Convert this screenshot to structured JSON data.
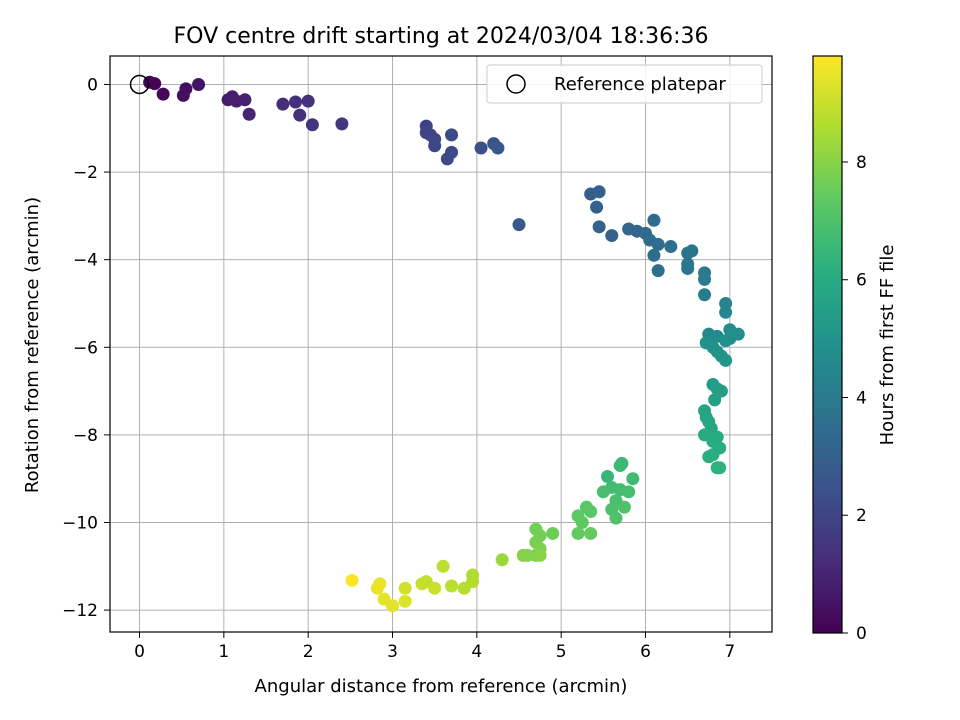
{
  "chart_data": {
    "type": "scatter",
    "title": "FOV centre drift starting at 2024/03/04 18:36:36",
    "xlabel": "Angular distance from reference (arcmin)",
    "ylabel": "Rotation from reference (arcmin)",
    "xlim": [
      -0.35,
      7.5
    ],
    "ylim": [
      -12.5,
      0.65
    ],
    "xticks": [
      0,
      1,
      2,
      3,
      4,
      5,
      6,
      7
    ],
    "yticks": [
      -12,
      -10,
      -8,
      -6,
      -4,
      -2,
      0
    ],
    "grid": true,
    "legend": {
      "placement": "top-right",
      "entries": [
        "Reference platepar"
      ]
    },
    "reference_point": {
      "x": 0,
      "y": 0,
      "label": "Reference platepar"
    },
    "colorbar": {
      "label": "Hours from first FF file",
      "colormap": "viridis",
      "range": [
        0,
        9.8
      ],
      "ticks": [
        0,
        2,
        4,
        6,
        8
      ]
    },
    "points": [
      [
        0.12,
        0.05,
        0.05
      ],
      [
        0.18,
        0.02,
        0.1
      ],
      [
        0.28,
        -0.22,
        0.2
      ],
      [
        0.52,
        -0.25,
        0.35
      ],
      [
        0.55,
        -0.1,
        0.4
      ],
      [
        0.7,
        0.0,
        0.5
      ],
      [
        1.05,
        -0.35,
        0.7
      ],
      [
        1.1,
        -0.28,
        0.75
      ],
      [
        1.15,
        -0.38,
        0.8
      ],
      [
        1.25,
        -0.35,
        0.9
      ],
      [
        1.3,
        -0.68,
        1.0
      ],
      [
        1.7,
        -0.45,
        1.2
      ],
      [
        1.85,
        -0.4,
        1.3
      ],
      [
        1.9,
        -0.7,
        1.35
      ],
      [
        2.0,
        -0.38,
        1.4
      ],
      [
        2.05,
        -0.92,
        1.45
      ],
      [
        2.4,
        -0.9,
        1.6
      ],
      [
        3.4,
        -0.95,
        1.9
      ],
      [
        3.4,
        -1.1,
        1.95
      ],
      [
        3.45,
        -1.15,
        2.0
      ],
      [
        3.5,
        -1.25,
        2.05
      ],
      [
        3.5,
        -1.4,
        2.1
      ],
      [
        3.65,
        -1.7,
        2.15
      ],
      [
        3.7,
        -1.55,
        2.2
      ],
      [
        3.7,
        -1.15,
        2.2
      ],
      [
        4.05,
        -1.45,
        2.4
      ],
      [
        4.2,
        -1.35,
        2.5
      ],
      [
        4.25,
        -1.45,
        2.55
      ],
      [
        4.5,
        -3.2,
        2.7
      ],
      [
        5.35,
        -2.5,
        2.9
      ],
      [
        5.45,
        -2.45,
        2.95
      ],
      [
        5.42,
        -2.8,
        3.0
      ],
      [
        5.45,
        -3.25,
        3.05
      ],
      [
        5.6,
        -3.45,
        3.1
      ],
      [
        5.8,
        -3.3,
        3.2
      ],
      [
        5.9,
        -3.35,
        3.25
      ],
      [
        6.0,
        -3.4,
        3.3
      ],
      [
        6.05,
        -3.55,
        3.35
      ],
      [
        6.1,
        -3.1,
        3.4
      ],
      [
        6.15,
        -3.65,
        3.45
      ],
      [
        6.1,
        -3.9,
        3.5
      ],
      [
        6.15,
        -4.25,
        3.55
      ],
      [
        6.3,
        -3.7,
        3.6
      ],
      [
        6.5,
        -3.85,
        3.7
      ],
      [
        6.55,
        -3.8,
        3.75
      ],
      [
        6.5,
        -4.1,
        3.8
      ],
      [
        6.5,
        -4.2,
        3.85
      ],
      [
        6.7,
        -4.3,
        4.0
      ],
      [
        6.7,
        -4.45,
        4.05
      ],
      [
        6.7,
        -4.8,
        4.1
      ],
      [
        6.95,
        -5.0,
        4.4
      ],
      [
        6.95,
        -5.2,
        4.45
      ],
      [
        6.75,
        -5.7,
        4.6
      ],
      [
        6.85,
        -5.75,
        4.65
      ],
      [
        6.95,
        -5.85,
        4.7
      ],
      [
        7.0,
        -5.6,
        4.75
      ],
      [
        7.1,
        -5.7,
        4.8
      ],
      [
        7.0,
        -5.8,
        4.85
      ],
      [
        6.72,
        -5.9,
        4.9
      ],
      [
        6.8,
        -6.0,
        4.95
      ],
      [
        6.85,
        -6.1,
        5.0
      ],
      [
        6.9,
        -6.2,
        5.05
      ],
      [
        6.95,
        -6.3,
        5.1
      ],
      [
        6.8,
        -6.85,
        5.4
      ],
      [
        6.85,
        -6.95,
        5.45
      ],
      [
        6.9,
        -7.0,
        5.5
      ],
      [
        6.82,
        -7.2,
        5.55
      ],
      [
        6.7,
        -7.45,
        5.7
      ],
      [
        6.72,
        -7.6,
        5.75
      ],
      [
        6.75,
        -7.7,
        5.8
      ],
      [
        6.78,
        -7.85,
        5.85
      ],
      [
        6.7,
        -8.0,
        5.9
      ],
      [
        6.85,
        -8.05,
        5.95
      ],
      [
        6.8,
        -8.15,
        6.0
      ],
      [
        6.88,
        -8.3,
        6.05
      ],
      [
        6.8,
        -8.45,
        6.1
      ],
      [
        6.75,
        -8.5,
        6.15
      ],
      [
        6.85,
        -8.75,
        6.2
      ],
      [
        6.88,
        -8.75,
        6.25
      ],
      [
        5.55,
        -8.95,
        6.5
      ],
      [
        5.7,
        -8.7,
        6.55
      ],
      [
        5.72,
        -8.65,
        6.6
      ],
      [
        5.85,
        -9.0,
        6.65
      ],
      [
        5.6,
        -9.2,
        6.7
      ],
      [
        5.7,
        -9.25,
        6.75
      ],
      [
        5.8,
        -9.3,
        6.8
      ],
      [
        5.5,
        -9.3,
        6.85
      ],
      [
        5.65,
        -9.5,
        6.9
      ],
      [
        5.6,
        -9.7,
        6.95
      ],
      [
        5.75,
        -9.65,
        7.0
      ],
      [
        5.65,
        -9.9,
        7.05
      ],
      [
        5.3,
        -9.65,
        7.2
      ],
      [
        5.35,
        -9.75,
        7.25
      ],
      [
        5.2,
        -9.85,
        7.3
      ],
      [
        5.25,
        -10.0,
        7.35
      ],
      [
        5.2,
        -10.25,
        7.4
      ],
      [
        5.35,
        -10.25,
        7.45
      ],
      [
        4.9,
        -10.25,
        7.6
      ],
      [
        4.7,
        -10.15,
        7.65
      ],
      [
        4.75,
        -10.3,
        7.7
      ],
      [
        4.7,
        -10.45,
        7.75
      ],
      [
        4.75,
        -10.6,
        7.8
      ],
      [
        4.7,
        -10.75,
        7.85
      ],
      [
        4.6,
        -10.75,
        7.9
      ],
      [
        4.55,
        -10.75,
        7.95
      ],
      [
        4.75,
        -10.75,
        8.0
      ],
      [
        4.3,
        -10.85,
        8.3
      ],
      [
        3.95,
        -11.2,
        8.6
      ],
      [
        3.95,
        -11.35,
        8.65
      ],
      [
        3.85,
        -11.5,
        8.7
      ],
      [
        3.7,
        -11.45,
        8.75
      ],
      [
        3.6,
        -11.0,
        8.8
      ],
      [
        3.4,
        -11.35,
        8.9
      ],
      [
        3.35,
        -11.4,
        8.95
      ],
      [
        3.5,
        -11.5,
        9.0
      ],
      [
        3.15,
        -11.5,
        9.1
      ],
      [
        3.15,
        -11.8,
        9.3
      ],
      [
        3.0,
        -11.9,
        9.35
      ],
      [
        2.9,
        -11.75,
        9.4
      ],
      [
        2.85,
        -11.4,
        9.45
      ],
      [
        2.82,
        -11.5,
        9.5
      ],
      [
        2.52,
        -11.32,
        9.7
      ]
    ]
  }
}
